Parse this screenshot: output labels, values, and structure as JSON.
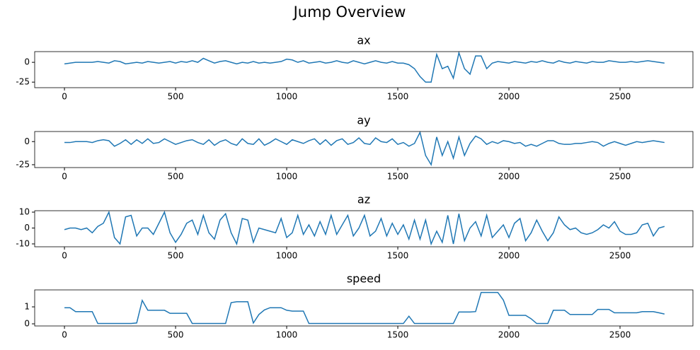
{
  "title": "Jump Overview",
  "chart_data": [
    {
      "type": "line",
      "title": "ax",
      "x": [
        0,
        25,
        50,
        75,
        100,
        125,
        150,
        175,
        200,
        225,
        250,
        275,
        300,
        325,
        350,
        375,
        400,
        425,
        450,
        475,
        500,
        525,
        550,
        575,
        600,
        625,
        650,
        675,
        700,
        725,
        750,
        775,
        800,
        825,
        850,
        875,
        900,
        925,
        950,
        975,
        1000,
        1025,
        1050,
        1075,
        1100,
        1125,
        1150,
        1175,
        1200,
        1225,
        1250,
        1275,
        1300,
        1325,
        1350,
        1375,
        1400,
        1425,
        1450,
        1475,
        1500,
        1525,
        1550,
        1575,
        1600,
        1625,
        1650,
        1675,
        1700,
        1725,
        1750,
        1775,
        1800,
        1825,
        1850,
        1875,
        1900,
        1925,
        1950,
        1975,
        2000,
        2025,
        2050,
        2075,
        2100,
        2125,
        2150,
        2175,
        2200,
        2225,
        2250,
        2275,
        2300,
        2325,
        2350,
        2375,
        2400,
        2425,
        2450,
        2475,
        2500,
        2525,
        2550,
        2575,
        2600,
        2625,
        2650,
        2675,
        2700
      ],
      "series": [
        {
          "color": "#1f77b4",
          "values": [
            -2,
            -1,
            0,
            0,
            0,
            0,
            1,
            0,
            -1,
            2,
            1,
            -2,
            -1,
            0,
            -1,
            1,
            0,
            -1,
            0,
            1,
            -1,
            1,
            0,
            2,
            0,
            5,
            2,
            -1,
            1,
            2,
            0,
            -2,
            0,
            -1,
            1,
            -1,
            0,
            -1,
            0,
            1,
            4,
            3,
            0,
            2,
            -1,
            0,
            1,
            -1,
            0,
            2,
            0,
            -1,
            2,
            0,
            -2,
            0,
            2,
            0,
            -1,
            1,
            -1,
            -1,
            -3,
            -8,
            -18,
            -25,
            -25,
            10,
            -8,
            -5,
            -20,
            12,
            -8,
            -15,
            8,
            8,
            -8,
            -1,
            1,
            0,
            -1,
            1,
            0,
            -1,
            1,
            0,
            2,
            0,
            -1,
            2,
            0,
            -1,
            1,
            0,
            -1,
            1,
            0,
            0,
            2,
            1,
            0,
            0,
            1,
            0,
            1,
            2,
            1,
            0,
            -1
          ]
        }
      ],
      "xlim": [
        -134,
        2828
      ],
      "xticks": [
        0,
        500,
        1000,
        1500,
        2000,
        2500
      ],
      "ylim": [
        -32,
        13.5
      ],
      "yticks": [
        -25,
        0
      ]
    },
    {
      "type": "line",
      "title": "ay",
      "x": [
        0,
        25,
        50,
        75,
        100,
        125,
        150,
        175,
        200,
        225,
        250,
        275,
        300,
        325,
        350,
        375,
        400,
        425,
        450,
        475,
        500,
        525,
        550,
        575,
        600,
        625,
        650,
        675,
        700,
        725,
        750,
        775,
        800,
        825,
        850,
        875,
        900,
        925,
        950,
        975,
        1000,
        1025,
        1050,
        1075,
        1100,
        1125,
        1150,
        1175,
        1200,
        1225,
        1250,
        1275,
        1300,
        1325,
        1350,
        1375,
        1400,
        1425,
        1450,
        1475,
        1500,
        1525,
        1550,
        1575,
        1600,
        1625,
        1650,
        1675,
        1700,
        1725,
        1750,
        1775,
        1800,
        1825,
        1850,
        1875,
        1900,
        1925,
        1950,
        1975,
        2000,
        2025,
        2050,
        2075,
        2100,
        2125,
        2150,
        2175,
        2200,
        2225,
        2250,
        2275,
        2300,
        2325,
        2350,
        2375,
        2400,
        2425,
        2450,
        2475,
        2500,
        2525,
        2550,
        2575,
        2600,
        2625,
        2650,
        2675,
        2700
      ],
      "series": [
        {
          "color": "#1f77b4",
          "values": [
            -1,
            -1,
            0,
            0,
            0,
            -1,
            1,
            2,
            1,
            -5,
            -2,
            2,
            -3,
            2,
            -2,
            3,
            -2,
            -1,
            3,
            0,
            -3,
            -1,
            1,
            2,
            -1,
            -3,
            2,
            -4,
            0,
            2,
            -2,
            -4,
            3,
            -2,
            -3,
            3,
            -4,
            -1,
            3,
            0,
            -3,
            2,
            0,
            -2,
            1,
            3,
            -3,
            2,
            -4,
            1,
            3,
            -3,
            -1,
            4,
            -2,
            -3,
            4,
            0,
            -1,
            3,
            -3,
            -1,
            -5,
            -2,
            10,
            -15,
            -25,
            5,
            -15,
            0,
            -18,
            5,
            -15,
            -2,
            6,
            3,
            -3,
            0,
            -2,
            1,
            0,
            -2,
            -1,
            -5,
            -3,
            -5,
            -2,
            1,
            1,
            -2,
            -3,
            -3,
            -2,
            -2,
            -1,
            0,
            -1,
            -5,
            -2,
            0,
            -2,
            -4,
            -2,
            0,
            -1,
            0,
            1,
            0,
            -1
          ]
        }
      ],
      "xlim": [
        -134,
        2828
      ],
      "xticks": [
        0,
        500,
        1000,
        1500,
        2000,
        2500
      ],
      "ylim": [
        -28.1,
        10.9
      ],
      "yticks": [
        -25,
        0
      ]
    },
    {
      "type": "line",
      "title": "az",
      "x": [
        0,
        25,
        50,
        75,
        100,
        125,
        150,
        175,
        200,
        225,
        250,
        275,
        300,
        325,
        350,
        375,
        400,
        425,
        450,
        475,
        500,
        525,
        550,
        575,
        600,
        625,
        650,
        675,
        700,
        725,
        750,
        775,
        800,
        825,
        850,
        875,
        900,
        925,
        950,
        975,
        1000,
        1025,
        1050,
        1075,
        1100,
        1125,
        1150,
        1175,
        1200,
        1225,
        1250,
        1275,
        1300,
        1325,
        1350,
        1375,
        1400,
        1425,
        1450,
        1475,
        1500,
        1525,
        1550,
        1575,
        1600,
        1625,
        1650,
        1675,
        1700,
        1725,
        1750,
        1775,
        1800,
        1825,
        1850,
        1875,
        1900,
        1925,
        1950,
        1975,
        2000,
        2025,
        2050,
        2075,
        2100,
        2125,
        2150,
        2175,
        2200,
        2225,
        2250,
        2275,
        2300,
        2325,
        2350,
        2375,
        2400,
        2425,
        2450,
        2475,
        2500,
        2525,
        2550,
        2575,
        2600,
        2625,
        2650,
        2675,
        2700
      ],
      "series": [
        {
          "color": "#1f77b4",
          "values": [
            -1,
            0,
            0,
            -1,
            0,
            -3,
            1,
            3,
            10,
            -6,
            -10,
            7,
            8,
            -5,
            0,
            0,
            -4,
            3,
            10,
            -3,
            -9,
            -4,
            3,
            5,
            -4,
            8,
            -3,
            -7,
            5,
            9,
            -3,
            -10,
            6,
            5,
            -9,
            0,
            -1,
            -2,
            -3,
            6,
            -6,
            -3,
            8,
            -4,
            2,
            -5,
            4,
            -4,
            8,
            -4,
            2,
            8,
            -5,
            0,
            8,
            -5,
            -2,
            6,
            -5,
            3,
            -4,
            2,
            -7,
            5,
            -7,
            5,
            -10,
            -2,
            -9,
            8,
            -10,
            9,
            -8,
            0,
            4,
            -5,
            8,
            -6,
            -2,
            2,
            -6,
            3,
            6,
            -8,
            -3,
            5,
            -2,
            -8,
            -3,
            7,
            2,
            -1,
            0,
            -3,
            -4,
            -3,
            -1,
            2,
            0,
            4,
            -2,
            -4,
            -4,
            -3,
            2,
            3,
            -5,
            0,
            1
          ]
        }
      ],
      "xlim": [
        -134,
        2828
      ],
      "xticks": [
        0,
        500,
        1000,
        1500,
        2000,
        2500
      ],
      "ylim": [
        -11.8,
        10.9
      ],
      "yticks": [
        -10,
        0,
        10
      ]
    },
    {
      "type": "line",
      "title": "speed",
      "x": [
        0,
        25,
        50,
        75,
        100,
        125,
        150,
        175,
        200,
        225,
        250,
        275,
        300,
        325,
        350,
        375,
        400,
        425,
        450,
        475,
        500,
        525,
        550,
        575,
        600,
        625,
        650,
        675,
        700,
        725,
        750,
        775,
        800,
        825,
        850,
        875,
        900,
        925,
        950,
        975,
        1000,
        1025,
        1050,
        1075,
        1100,
        1125,
        1150,
        1175,
        1200,
        1225,
        1250,
        1275,
        1300,
        1325,
        1350,
        1375,
        1400,
        1425,
        1450,
        1475,
        1500,
        1525,
        1550,
        1575,
        1600,
        1625,
        1650,
        1675,
        1700,
        1725,
        1750,
        1775,
        1800,
        1825,
        1850,
        1875,
        1900,
        1925,
        1950,
        1975,
        2000,
        2025,
        2050,
        2075,
        2100,
        2125,
        2150,
        2175,
        2200,
        2225,
        2250,
        2275,
        2300,
        2325,
        2350,
        2375,
        2400,
        2425,
        2450,
        2475,
        2500,
        2525,
        2550,
        2575,
        2600,
        2625,
        2650,
        2675,
        2700
      ],
      "series": [
        {
          "color": "#1f77b4",
          "values": [
            0.95,
            0.95,
            0.72,
            0.72,
            0.72,
            0.72,
            0.02,
            0.02,
            0.02,
            0.02,
            0.02,
            0.02,
            0.02,
            0.05,
            1.38,
            0.8,
            0.8,
            0.8,
            0.8,
            0.62,
            0.62,
            0.62,
            0.62,
            0.02,
            0.02,
            0.02,
            0.02,
            0.02,
            0.02,
            0.02,
            1.25,
            1.3,
            1.3,
            1.3,
            0.05,
            0.55,
            0.82,
            0.95,
            0.95,
            0.95,
            0.8,
            0.75,
            0.75,
            0.75,
            0.02,
            0.02,
            0.02,
            0.02,
            0.02,
            0.02,
            0.02,
            0.02,
            0.02,
            0.02,
            0.02,
            0.02,
            0.02,
            0.02,
            0.02,
            0.02,
            0.02,
            0.02,
            0.45,
            0.02,
            0.02,
            0.02,
            0.02,
            0.02,
            0.02,
            0.02,
            0.02,
            0.7,
            0.7,
            0.7,
            0.72,
            1.85,
            1.85,
            1.85,
            1.85,
            1.4,
            0.5,
            0.5,
            0.5,
            0.5,
            0.3,
            0.02,
            0.02,
            0.02,
            0.8,
            0.8,
            0.8,
            0.55,
            0.55,
            0.55,
            0.55,
            0.55,
            0.85,
            0.85,
            0.85,
            0.65,
            0.65,
            0.65,
            0.65,
            0.65,
            0.72,
            0.72,
            0.72,
            0.65,
            0.58
          ]
        }
      ],
      "xlim": [
        -134,
        2828
      ],
      "xticks": [
        0,
        500,
        1000,
        1500,
        2000,
        2500
      ],
      "ylim": [
        -0.125,
        2.0
      ],
      "yticks": [
        0,
        1
      ]
    }
  ]
}
